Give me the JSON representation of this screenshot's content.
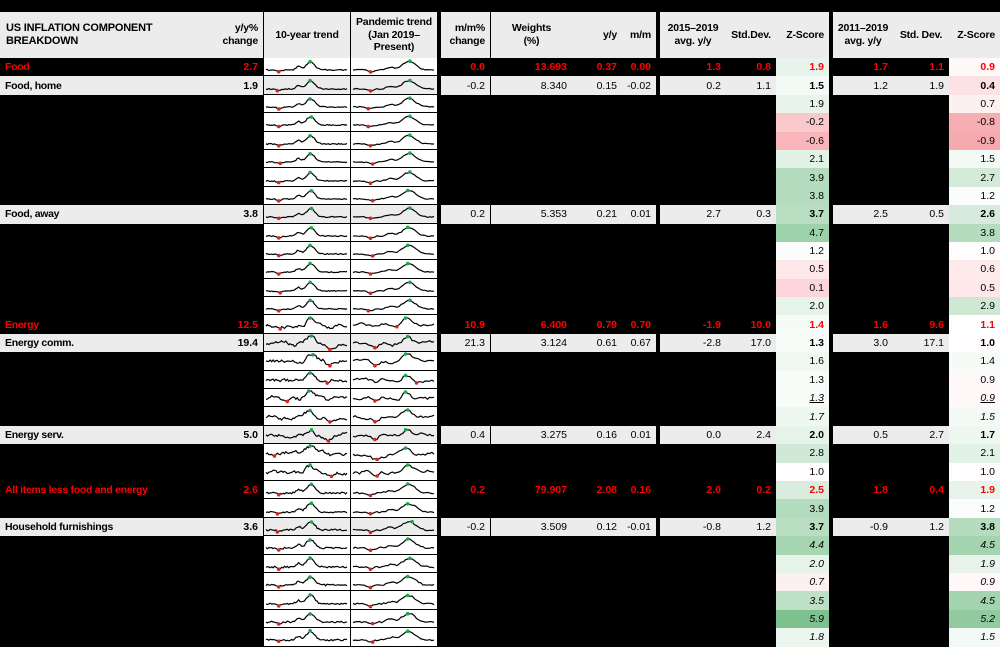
{
  "chart_data": {
    "type": "table",
    "title": "US INFLATION COMPONENT BREAKDOWN",
    "columns": [
      "US INFLATION COMPONENT BREAKDOWN",
      "y/y%\nchange",
      "10-year trend",
      "Pandemic trend\n(Jan 2019–Present)",
      "m/m%\nchange",
      "Weights\n(%)",
      "y/y",
      "m/m",
      "2015–2019\navg. y/y",
      "Std.Dev.",
      "Z-Score",
      "2011–2019\navg. y/y",
      "Std. Dev.",
      "Z-Score"
    ],
    "rows": [
      {
        "label": "Food",
        "type": "section",
        "style": "plain",
        "spark": "food",
        "yoy_pct": "2.7",
        "mom_pct": "0.0",
        "weight": "13.693",
        "yoy": "0.37",
        "mm": "0.00",
        "avg15": "1.3",
        "sd15": "0.8",
        "z15": "1.9",
        "avg11": "1.7",
        "sd11": "1.1",
        "z11": "0.9"
      },
      {
        "label": "Food, home",
        "type": "named",
        "style": "plain",
        "spark": "food",
        "yoy_pct": "1.9",
        "mom_pct": "-0.2",
        "weight": "8.340",
        "yoy": "0.15",
        "mm": "-0.02",
        "avg15": "0.2",
        "sd15": "1.1",
        "z15": "1.5",
        "avg11": "1.2",
        "sd11": "1.9",
        "z11": "0.4"
      },
      {
        "label": "",
        "type": "hidden",
        "style": "plain",
        "spark": "food",
        "z15": "1.9",
        "z11": "0.7"
      },
      {
        "label": "",
        "type": "hidden",
        "style": "plain",
        "spark": "food",
        "z15": "-0.2",
        "z11": "-0.8"
      },
      {
        "label": "",
        "type": "hidden",
        "style": "plain",
        "spark": "food",
        "z15": "-0.6",
        "z11": "-0.9"
      },
      {
        "label": "",
        "type": "hidden",
        "style": "plain",
        "spark": "food",
        "z15": "2.1",
        "z11": "1.5"
      },
      {
        "label": "",
        "type": "hidden",
        "style": "plain",
        "spark": "food",
        "z15": "3.9",
        "z11": "2.7"
      },
      {
        "label": "",
        "type": "hidden",
        "style": "plain",
        "spark": "food",
        "z15": "3.8",
        "z11": "1.2"
      },
      {
        "label": "Food, away",
        "type": "named",
        "style": "plain",
        "spark": "food",
        "yoy_pct": "3.8",
        "mom_pct": "0.2",
        "weight": "5.353",
        "yoy": "0.21",
        "mm": "0.01",
        "avg15": "2.7",
        "sd15": "0.3",
        "z15": "3.7",
        "avg11": "2.5",
        "sd11": "0.5",
        "z11": "2.6"
      },
      {
        "label": "",
        "type": "hidden",
        "style": "plain",
        "spark": "food",
        "z15": "4.7",
        "z11": "3.8"
      },
      {
        "label": "",
        "type": "hidden",
        "style": "plain",
        "spark": "food",
        "z15": "1.2",
        "z11": "1.0"
      },
      {
        "label": "",
        "type": "hidden",
        "style": "plain",
        "spark": "food",
        "z15": "0.5",
        "z11": "0.6"
      },
      {
        "label": "",
        "type": "hidden",
        "style": "plain",
        "spark": "food",
        "z15": "0.1",
        "z11": "0.5"
      },
      {
        "label": "",
        "type": "hidden",
        "style": "plain",
        "spark": "food",
        "z15": "2.0",
        "z11": "2.9"
      },
      {
        "label": "Energy",
        "type": "section",
        "style": "plain",
        "spark": "energy",
        "yoy_pct": "12.5",
        "mom_pct": "10.9",
        "weight": "6.400",
        "yoy": "0.79",
        "mm": "0.70",
        "avg15": "-1.9",
        "sd15": "10.0",
        "z15": "1.4",
        "avg11": "1.6",
        "sd11": "9.6",
        "z11": "1.1"
      },
      {
        "label": "Energy comm.",
        "type": "named",
        "style": "plain",
        "spark": "energy",
        "yoy_pct": "19.4",
        "mom_pct": "21.3",
        "weight": "3.124",
        "yoy": "0.61",
        "mm": "0.67",
        "avg15": "-2.8",
        "sd15": "17.0",
        "z15": "1.3",
        "avg11": "3.0",
        "sd11": "17.1",
        "z11": "1.0"
      },
      {
        "label": "",
        "type": "hidden",
        "style": "plain",
        "spark": "energy",
        "z15": "1.6",
        "z11": "1.4"
      },
      {
        "label": "",
        "type": "hidden",
        "style": "plain",
        "spark": "energy",
        "z15": "1.3",
        "z11": "0.9"
      },
      {
        "label": "",
        "type": "hidden",
        "style": "underline-italic",
        "spark": "energy",
        "z15": "1.3",
        "z11": "0.9"
      },
      {
        "label": "",
        "type": "hidden",
        "style": "italic",
        "spark": "energy",
        "z15": "1.7",
        "z11": "1.5"
      },
      {
        "label": "Energy serv.",
        "type": "named",
        "style": "plain",
        "spark": "energy",
        "yoy_pct": "5.0",
        "mom_pct": "0.4",
        "weight": "3.275",
        "yoy": "0.16",
        "mm": "0.01",
        "avg15": "0.0",
        "sd15": "2.4",
        "z15": "2.0",
        "avg11": "0.5",
        "sd11": "2.7",
        "z11": "1.7"
      },
      {
        "label": "",
        "type": "hidden",
        "style": "plain",
        "spark": "energy",
        "z15": "2.8",
        "z11": "2.1"
      },
      {
        "label": "",
        "type": "hidden",
        "style": "plain",
        "spark": "energy",
        "z15": "1.0",
        "z11": "1.0"
      },
      {
        "label": "All items less food and energy",
        "type": "section",
        "style": "plain",
        "spark": "core",
        "yoy_pct": "2.6",
        "mom_pct": "0.2",
        "weight": "79.907",
        "yoy": "2.08",
        "mm": "0.16",
        "avg15": "2.0",
        "sd15": "0.2",
        "z15": "2.5",
        "avg11": "1.8",
        "sd11": "0.4",
        "z11": "1.9"
      },
      {
        "label": "",
        "type": "hidden",
        "style": "plain",
        "spark": "core",
        "z15": "3.9",
        "z11": "1.2"
      },
      {
        "label": "Household furnishings",
        "type": "named",
        "style": "plain",
        "spark": "core",
        "yoy_pct": "3.6",
        "mom_pct": "-0.2",
        "weight": "3.509",
        "yoy": "0.12",
        "mm": "-0.01",
        "avg15": "-0.8",
        "sd15": "1.2",
        "z15": "3.7",
        "avg11": "-0.9",
        "sd11": "1.2",
        "z11": "3.8"
      },
      {
        "label": "",
        "type": "hidden",
        "style": "italic",
        "spark": "core",
        "z15": "4.4",
        "z11": "4.5"
      },
      {
        "label": "",
        "type": "hidden",
        "style": "italic",
        "spark": "core",
        "z15": "2.0",
        "z11": "1.9"
      },
      {
        "label": "",
        "type": "hidden",
        "style": "italic",
        "spark": "core",
        "z15": "0.7",
        "z11": "0.9"
      },
      {
        "label": "",
        "type": "hidden",
        "style": "italic",
        "spark": "core",
        "z15": "3.5",
        "z11": "4.5"
      },
      {
        "label": "",
        "type": "hidden",
        "style": "italic",
        "spark": "core",
        "z15": "5.9",
        "z11": "5.2"
      },
      {
        "label": "",
        "type": "hidden",
        "style": "italic",
        "spark": "core",
        "z15": "1.8",
        "z11": "1.5"
      }
    ],
    "legend": {
      "zscore_positive_fill": "#7cc18d",
      "zscore_negative_fill": "#f6a7ac",
      "zscore_neutral_fill": "#ffffff",
      "section_text_color": "#ff0000",
      "row_fill_gray": "#ececec",
      "hidden_row_fill": "#000000",
      "sparkline_line_color": "#000000",
      "sparkline_max_marker_color": "#1fa44d",
      "sparkline_min_marker_color": "#e02020"
    }
  }
}
